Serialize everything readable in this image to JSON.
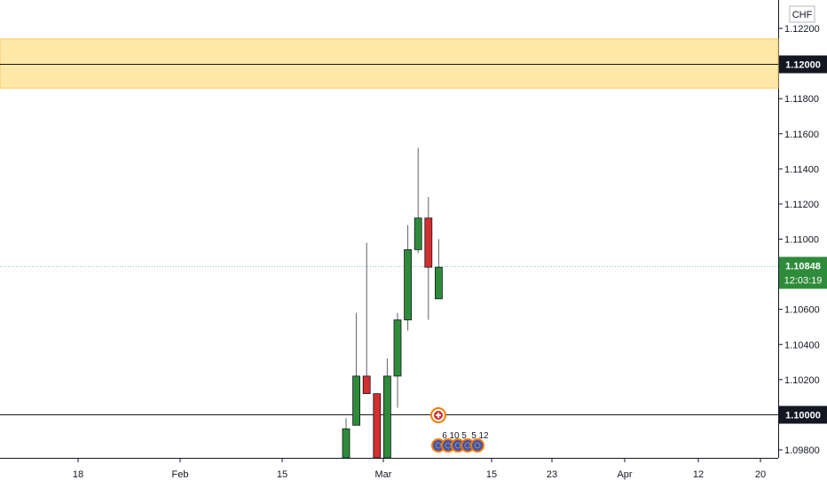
{
  "chart_data": {
    "type": "candlestick",
    "currency_label": "CHF",
    "y_range": [
      1.0972,
      1.1238
    ],
    "y_ticks": [
      "1.12200",
      "1.11800",
      "1.11600",
      "1.11400",
      "1.11200",
      "1.11000",
      "1.10600",
      "1.10400",
      "1.10200",
      "1.09800"
    ],
    "x_ticks": [
      "18",
      "Feb",
      "15",
      "Mar",
      "15",
      "23",
      "Apr",
      "12",
      "20"
    ],
    "zone": {
      "top": 1.1214,
      "bottom": 1.1186,
      "color": "#FFE8A8"
    },
    "horizontal_lines": [
      {
        "value": 1.12,
        "label": "1.12000",
        "color": "#131722"
      },
      {
        "value": 1.1,
        "label": "1.10000",
        "color": "#131722"
      }
    ],
    "current_price": {
      "value": 1.10848,
      "label": "1.10848",
      "countdown": "12:03:19",
      "color": "#26A69A"
    },
    "candles": [
      {
        "o": 1.0972,
        "h": 1.0998,
        "l": 1.0972,
        "c": 1.0992,
        "dir": "up"
      },
      {
        "o": 1.0994,
        "h": 1.1058,
        "l": 1.0994,
        "c": 1.1022,
        "dir": "up"
      },
      {
        "o": 1.1022,
        "h": 1.1098,
        "l": 1.1012,
        "c": 1.1012,
        "dir": "down"
      },
      {
        "o": 1.1012,
        "h": 1.1012,
        "l": 1.0972,
        "c": 1.0972,
        "dir": "down"
      },
      {
        "o": 1.0972,
        "h": 1.1032,
        "l": 1.0972,
        "c": 1.1022,
        "dir": "up"
      },
      {
        "o": 1.1022,
        "h": 1.1058,
        "l": 1.1004,
        "c": 1.1054,
        "dir": "up"
      },
      {
        "o": 1.1054,
        "h": 1.1108,
        "l": 1.1048,
        "c": 1.1094,
        "dir": "up"
      },
      {
        "o": 1.1094,
        "h": 1.1152,
        "l": 1.1092,
        "c": 1.1112,
        "dir": "up"
      },
      {
        "o": 1.1112,
        "h": 1.1124,
        "l": 1.1054,
        "c": 1.1084,
        "dir": "down"
      },
      {
        "o": 1.1066,
        "h": 1.11,
        "l": 1.1066,
        "c": 1.1084,
        "dir": "up"
      }
    ],
    "colors": {
      "up": "#2E8B3A",
      "down": "#D32F2F",
      "wick": "#5D606B"
    },
    "event_flags": [
      {
        "label": "6"
      },
      {
        "label": "10"
      },
      {
        "label": "5"
      },
      {
        "label": "5"
      },
      {
        "label": "12"
      }
    ]
  }
}
